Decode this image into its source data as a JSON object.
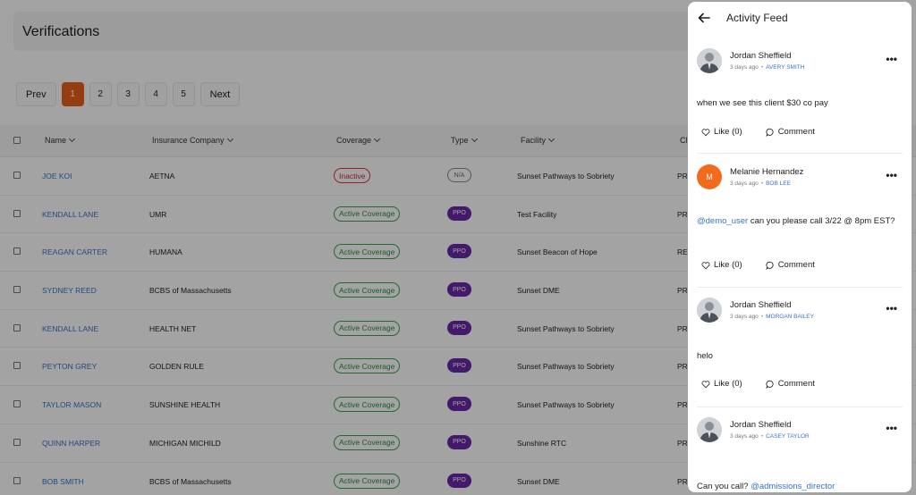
{
  "page": {
    "title": "Verifications"
  },
  "pagination": {
    "prev": "Prev",
    "next": "Next",
    "pages": [
      "1",
      "2",
      "3",
      "4",
      "5"
    ],
    "current": "1"
  },
  "table": {
    "headers": {
      "name": "Name",
      "insurance": "Insurance Company",
      "coverage": "Coverage",
      "type": "Type",
      "facility": "Facility",
      "clipped": "Cl"
    },
    "rows": [
      {
        "name": "JOE KOI",
        "insurance": "AETNA",
        "coverage": "Inactive",
        "coverage_status": "inactive",
        "type": "N/A",
        "type_kind": "na",
        "facility": "Sunset Pathways to Sobriety",
        "clipped": "PR"
      },
      {
        "name": "KENDALL LANE",
        "insurance": "UMR",
        "coverage": "Active Coverage",
        "coverage_status": "active",
        "type": "PPO",
        "type_kind": "ppo",
        "facility": "Test Facility",
        "clipped": "PR"
      },
      {
        "name": "REAGAN CARTER",
        "insurance": "HUMANA",
        "coverage": "Active Coverage",
        "coverage_status": "active",
        "type": "PPO",
        "type_kind": "ppo",
        "facility": "Sunset Beacon of Hope",
        "clipped": "RE"
      },
      {
        "name": "SYDNEY REED",
        "insurance": "BCBS of Massachusetts",
        "coverage": "Active Coverage",
        "coverage_status": "active",
        "type": "PPO",
        "type_kind": "ppo",
        "facility": "Sunset DME",
        "clipped": "PR"
      },
      {
        "name": "KENDALL LANE",
        "insurance": "HEALTH NET",
        "coverage": "Active Coverage",
        "coverage_status": "active",
        "type": "PPO",
        "type_kind": "ppo",
        "facility": "Sunset Pathways to Sobriety",
        "clipped": "PR"
      },
      {
        "name": "PEYTON GREY",
        "insurance": "GOLDEN RULE",
        "coverage": "Active Coverage",
        "coverage_status": "active",
        "type": "PPO",
        "type_kind": "ppo",
        "facility": "Sunset Pathways to Sobriety",
        "clipped": "PR"
      },
      {
        "name": "TAYLOR MASON",
        "insurance": "SUNSHINE HEALTH",
        "coverage": "Active Coverage",
        "coverage_status": "active",
        "type": "PPO",
        "type_kind": "ppo",
        "facility": "Sunset Pathways to Sobriety",
        "clipped": "PR"
      },
      {
        "name": "QUINN HARPER",
        "insurance": "MICHIGAN MICHILD",
        "coverage": "Active Coverage",
        "coverage_status": "active",
        "type": "PPO",
        "type_kind": "ppo",
        "facility": "Sunshine RTC",
        "clipped": "PR"
      },
      {
        "name": "BOB SMITH",
        "insurance": "BCBS of Massachusetts",
        "coverage": "Active Coverage",
        "coverage_status": "active",
        "type": "PPO",
        "type_kind": "ppo",
        "facility": "Sunset DME",
        "clipped": "PR"
      }
    ]
  },
  "activity_feed": {
    "title": "Activity Feed",
    "posts": [
      {
        "author": "Jordan Sheffield",
        "avatar": "photo",
        "time": "3 days ago",
        "tag": "AVERY SMITH",
        "text": "when we see this client $30 co pay",
        "mention": "",
        "mention_suffix": "",
        "like_label": "Like (0)",
        "comment_label": "Comment"
      },
      {
        "author": "Melanie Hernandez",
        "avatar": "initial",
        "initial": "M",
        "time": "3 days ago",
        "tag": "BOB LEE",
        "text": "can you please call 3/22 @ 8pm EST?",
        "mention": "@demo_user",
        "mention_suffix": "",
        "like_label": "Like (0)",
        "comment_label": "Comment"
      },
      {
        "author": "Jordan Sheffield",
        "avatar": "photo",
        "time": "3 days ago",
        "tag": "MORGAN BAILEY",
        "text": "helo",
        "mention": "",
        "mention_suffix": "",
        "like_label": "Like (0)",
        "comment_label": "Comment"
      },
      {
        "author": "Jordan Sheffield",
        "avatar": "photo",
        "time": "3 days ago",
        "tag": "CASEY TAYLOR",
        "text": "Can you call?",
        "mention": "",
        "mention_suffix": "@admissions_director",
        "like_label": "",
        "comment_label": ""
      }
    ]
  },
  "colors": {
    "accent": "#e8601c",
    "link": "#3a73c6",
    "ppo": "#6a28a8",
    "active": "#2e8b3d",
    "inactive": "#c02e2e"
  },
  "icons": {
    "back": "arrow-left-icon",
    "more": "more-horizontal-icon",
    "like": "heart-icon",
    "comment": "comment-icon",
    "sort": "chevron-down-icon"
  }
}
